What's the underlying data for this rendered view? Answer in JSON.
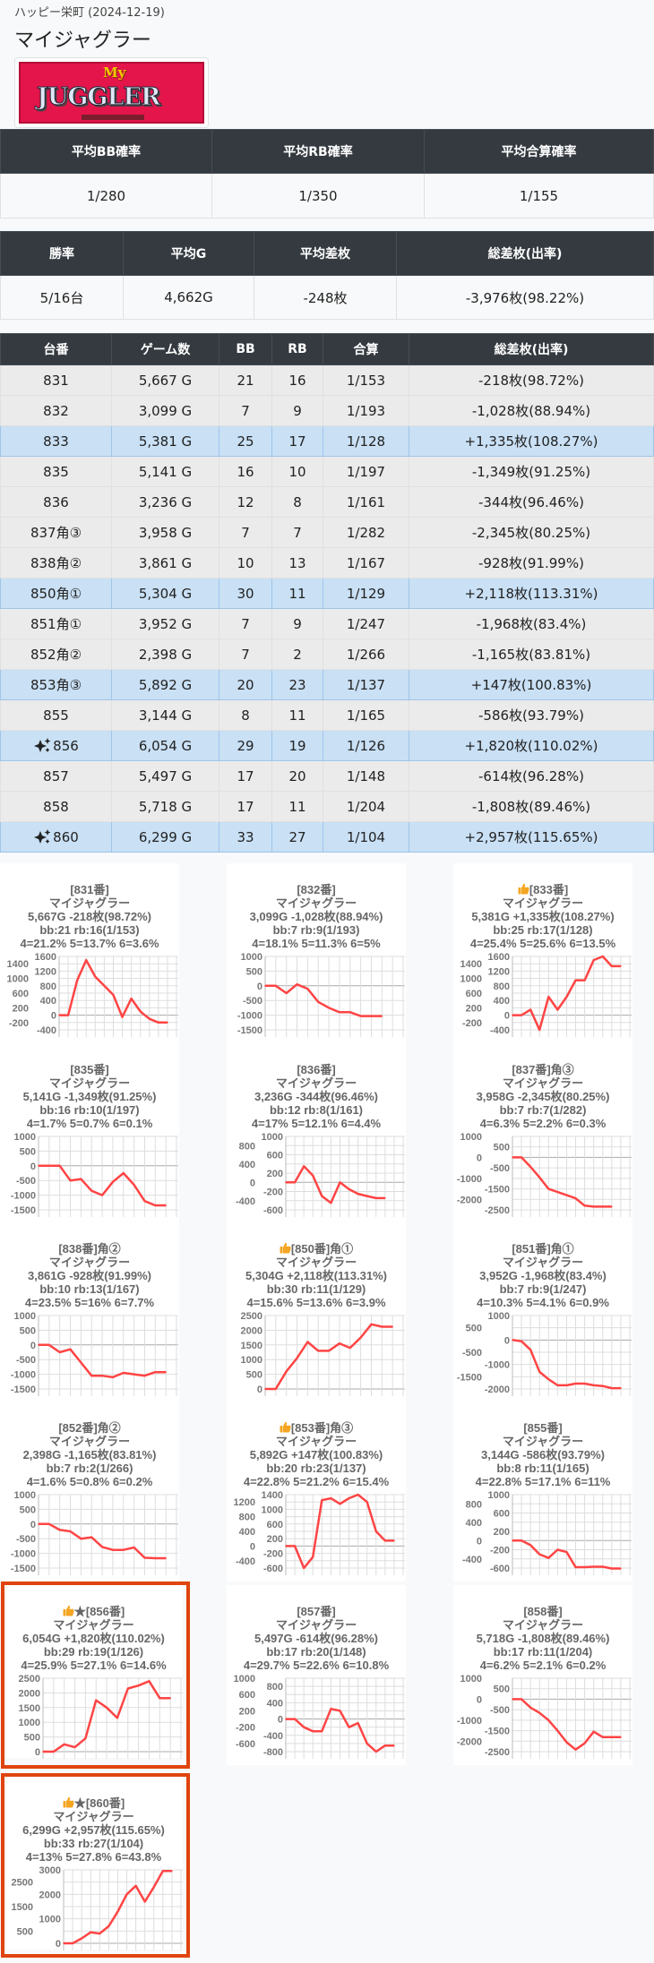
{
  "header": {
    "store_date": "ハッピー栄町 (2024-12-19)",
    "machine": "マイジャグラー",
    "logo_text": "My JUGGLER"
  },
  "summary1": {
    "headers": [
      "平均BB確率",
      "平均RB確率",
      "平均合算確率"
    ],
    "values": [
      "1/280",
      "1/350",
      "1/155"
    ]
  },
  "summary2": {
    "headers": [
      "勝率",
      "平均G",
      "平均差枚",
      "総差枚(出率)"
    ],
    "values": [
      "5/16台",
      "4,662G",
      "-248枚",
      "-3,976枚(98.22%)"
    ]
  },
  "machines": {
    "headers": [
      "台番",
      "ゲーム数",
      "BB",
      "RB",
      "合算",
      "総差枚(出率)"
    ],
    "rows": [
      {
        "no": "831",
        "games": "5,667 G",
        "bb": "21",
        "rb": "16",
        "total": "1/153",
        "diff": "-218枚(98.72%)",
        "highlight": false,
        "sparkle": false
      },
      {
        "no": "832",
        "games": "3,099 G",
        "bb": "7",
        "rb": "9",
        "total": "1/193",
        "diff": "-1,028枚(88.94%)",
        "highlight": false,
        "sparkle": false
      },
      {
        "no": "833",
        "games": "5,381 G",
        "bb": "25",
        "rb": "17",
        "total": "1/128",
        "diff": "+1,335枚(108.27%)",
        "highlight": true,
        "sparkle": false
      },
      {
        "no": "835",
        "games": "5,141 G",
        "bb": "16",
        "rb": "10",
        "total": "1/197",
        "diff": "-1,349枚(91.25%)",
        "highlight": false,
        "sparkle": false
      },
      {
        "no": "836",
        "games": "3,236 G",
        "bb": "12",
        "rb": "8",
        "total": "1/161",
        "diff": "-344枚(96.46%)",
        "highlight": false,
        "sparkle": false
      },
      {
        "no": "837角③",
        "games": "3,958 G",
        "bb": "7",
        "rb": "7",
        "total": "1/282",
        "diff": "-2,345枚(80.25%)",
        "highlight": false,
        "sparkle": false
      },
      {
        "no": "838角②",
        "games": "3,861 G",
        "bb": "10",
        "rb": "13",
        "total": "1/167",
        "diff": "-928枚(91.99%)",
        "highlight": false,
        "sparkle": false
      },
      {
        "no": "850角①",
        "games": "5,304 G",
        "bb": "30",
        "rb": "11",
        "total": "1/129",
        "diff": "+2,118枚(113.31%)",
        "highlight": true,
        "sparkle": false
      },
      {
        "no": "851角①",
        "games": "3,952 G",
        "bb": "7",
        "rb": "9",
        "total": "1/247",
        "diff": "-1,968枚(83.4%)",
        "highlight": false,
        "sparkle": false
      },
      {
        "no": "852角②",
        "games": "2,398 G",
        "bb": "7",
        "rb": "2",
        "total": "1/266",
        "diff": "-1,165枚(83.81%)",
        "highlight": false,
        "sparkle": false
      },
      {
        "no": "853角③",
        "games": "5,892 G",
        "bb": "20",
        "rb": "23",
        "total": "1/137",
        "diff": "+147枚(100.83%)",
        "highlight": true,
        "sparkle": false
      },
      {
        "no": "855",
        "games": "3,144 G",
        "bb": "8",
        "rb": "11",
        "total": "1/165",
        "diff": "-586枚(93.79%)",
        "highlight": false,
        "sparkle": false
      },
      {
        "no": "856",
        "games": "6,054 G",
        "bb": "29",
        "rb": "19",
        "total": "1/126",
        "diff": "+1,820枚(110.02%)",
        "highlight": true,
        "sparkle": true
      },
      {
        "no": "857",
        "games": "5,497 G",
        "bb": "17",
        "rb": "20",
        "total": "1/148",
        "diff": "-614枚(96.28%)",
        "highlight": false,
        "sparkle": false
      },
      {
        "no": "858",
        "games": "5,718 G",
        "bb": "17",
        "rb": "11",
        "total": "1/204",
        "diff": "-1,808枚(89.46%)",
        "highlight": false,
        "sparkle": false
      },
      {
        "no": "860",
        "games": "6,299 G",
        "bb": "33",
        "rb": "27",
        "total": "1/104",
        "diff": "+2,957枚(115.65%)",
        "highlight": true,
        "sparkle": true
      }
    ]
  },
  "colors": {
    "line": "#ff4444",
    "frame": "#e0440e",
    "thumb": "#f4a623"
  },
  "chart_data": [
    {
      "type": "line",
      "title": "[831番]",
      "thumbs": false,
      "machine": "マイジャグラー",
      "summary": "5,667G -218枚(98.72%)",
      "bbrb": "bb:21 rb:16(1/153)",
      "settings": "4=21.2% 5=13.7% 6=3.6%",
      "ylim": [
        -400,
        1600
      ],
      "ystep": 200,
      "values": [
        0,
        0,
        950,
        1500,
        1050,
        800,
        550,
        -50,
        450,
        100,
        -100,
        -200,
        -200
      ],
      "framed": false
    },
    {
      "type": "line",
      "title": "[832番]",
      "thumbs": false,
      "machine": "マイジャグラー",
      "summary": "3,099G -1,028枚(88.94%)",
      "bbrb": "bb:7 rb:9(1/193)",
      "settings": "4=18.1% 5=11.3% 6=5%",
      "ylim": [
        -1500,
        1000
      ],
      "ystep": 500,
      "values": [
        0,
        0,
        -250,
        50,
        -100,
        -550,
        -750,
        -900,
        -900,
        -1030,
        -1030,
        -1030
      ],
      "framed": false
    },
    {
      "type": "line",
      "title": "[833番]",
      "thumbs": true,
      "machine": "マイジャグラー",
      "summary": "5,381G +1,335枚(108.27%)",
      "bbrb": "bb:25 rb:17(1/128)",
      "settings": "4=25.4% 5=25.6% 6=13.5%",
      "ylim": [
        -400,
        1600
      ],
      "ystep": 200,
      "values": [
        0,
        0,
        150,
        -400,
        500,
        150,
        500,
        950,
        950,
        1500,
        1600,
        1335,
        1335
      ],
      "framed": false
    },
    {
      "type": "line",
      "title": "[835番]",
      "thumbs": false,
      "machine": "マイジャグラー",
      "summary": "5,141G -1,349枚(91.25%)",
      "bbrb": "bb:16 rb:10(1/197)",
      "settings": "4=1.7% 5=0.7% 6=0.1%",
      "ylim": [
        -1500,
        1000
      ],
      "ystep": 500,
      "values": [
        0,
        0,
        0,
        -500,
        -450,
        -850,
        -1000,
        -550,
        -250,
        -650,
        -1200,
        -1349,
        -1349
      ],
      "framed": false
    },
    {
      "type": "line",
      "title": "[836番]",
      "thumbs": false,
      "machine": "マイジャグラー",
      "summary": "3,236G -344枚(96.46%)",
      "bbrb": "bb:12 rb:8(1/161)",
      "settings": "4=17% 5=12.1% 6=4.4%",
      "ylim": [
        -600,
        1000
      ],
      "ystep": 200,
      "values": [
        0,
        0,
        350,
        150,
        -300,
        -450,
        0,
        -150,
        -250,
        -300,
        -344,
        -344
      ],
      "framed": false
    },
    {
      "type": "line",
      "title": "[837番]角③",
      "thumbs": false,
      "machine": "マイジャグラー",
      "summary": "3,958G -2,345枚(80.25%)",
      "bbrb": "bb:7 rb:7(1/282)",
      "settings": "4=6.3% 5=2.2% 6=0.3%",
      "ylim": [
        -2500,
        1000
      ],
      "ystep": 500,
      "values": [
        0,
        0,
        -450,
        -950,
        -1500,
        -1650,
        -1800,
        -1950,
        -2300,
        -2345,
        -2345,
        -2345
      ],
      "framed": false
    },
    {
      "type": "line",
      "title": "[838番]角②",
      "thumbs": false,
      "machine": "マイジャグラー",
      "summary": "3,861G -928枚(91.99%)",
      "bbrb": "bb:10 rb:13(1/167)",
      "settings": "4=23.5% 5=16% 6=7.7%",
      "ylim": [
        -1500,
        1000
      ],
      "ystep": 500,
      "values": [
        0,
        0,
        -250,
        -150,
        -600,
        -1050,
        -1050,
        -1100,
        -950,
        -1000,
        -1050,
        -928,
        -928
      ],
      "framed": false
    },
    {
      "type": "line",
      "title": "[850番]角①",
      "thumbs": true,
      "machine": "マイジャグラー",
      "summary": "5,304G +2,118枚(113.31%)",
      "bbrb": "bb:30 rb:11(1/129)",
      "settings": "4=15.6% 5=13.6% 6=3.9%",
      "ylim": [
        0,
        2500
      ],
      "ystep": 500,
      "values": [
        0,
        0,
        600,
        1050,
        1600,
        1300,
        1300,
        1550,
        1400,
        1750,
        2200,
        2118,
        2118
      ],
      "framed": false
    },
    {
      "type": "line",
      "title": "[851番]角①",
      "thumbs": false,
      "machine": "マイジャグラー",
      "summary": "3,952G -1,968枚(83.4%)",
      "bbrb": "bb:7 rb:9(1/247)",
      "settings": "4=10.3% 5=4.1% 6=0.9%",
      "ylim": [
        -2000,
        1000
      ],
      "ystep": 500,
      "values": [
        0,
        -50,
        -400,
        -1300,
        -1600,
        -1850,
        -1850,
        -1780,
        -1780,
        -1850,
        -1880,
        -1968,
        -1968
      ],
      "framed": false
    },
    {
      "type": "line",
      "title": "[852番]角②",
      "thumbs": false,
      "machine": "マイジャグラー",
      "summary": "2,398G -1,165枚(83.81%)",
      "bbrb": "bb:7 rb:2(1/266)",
      "settings": "4=1.6% 5=0.8% 6=0.2%",
      "ylim": [
        -1500,
        1000
      ],
      "ystep": 500,
      "values": [
        0,
        0,
        -200,
        -250,
        -500,
        -450,
        -780,
        -880,
        -880,
        -800,
        -1150,
        -1165,
        -1165
      ],
      "framed": false
    },
    {
      "type": "line",
      "title": "[853番]角③",
      "thumbs": true,
      "machine": "マイジャグラー",
      "summary": "5,892G +147枚(100.83%)",
      "bbrb": "bb:20 rb:23(1/137)",
      "settings": "4=22.8% 5=21.2% 6=15.4%",
      "ylim": [
        -600,
        1400
      ],
      "ystep": 200,
      "values": [
        0,
        0,
        -600,
        -300,
        1250,
        1300,
        1150,
        1300,
        1400,
        1200,
        400,
        147,
        147
      ],
      "framed": false
    },
    {
      "type": "line",
      "title": "[855番]",
      "thumbs": false,
      "machine": "マイジャグラー",
      "summary": "3,144G -586枚(93.79%)",
      "bbrb": "bb:8 rb:11(1/165)",
      "settings": "4=22.8% 5=17.1% 6=11%",
      "ylim": [
        -600,
        1000
      ],
      "ystep": 200,
      "values": [
        0,
        0,
        -100,
        -300,
        -380,
        -200,
        -250,
        -580,
        -580,
        -570,
        -570,
        -610,
        -610
      ],
      "framed": false
    },
    {
      "type": "line",
      "title": "★[856番]",
      "thumbs": true,
      "machine": "マイジャグラー",
      "summary": "6,054G +1,820枚(110.02%)",
      "bbrb": "bb:29 rb:19(1/126)",
      "settings": "4=25.9% 5=27.1% 6=14.6%",
      "ylim": [
        0,
        2500
      ],
      "ystep": 500,
      "values": [
        0,
        0,
        250,
        150,
        450,
        1750,
        1500,
        1150,
        2150,
        2250,
        2400,
        1820,
        1820
      ],
      "framed": true
    },
    {
      "type": "line",
      "title": "[857番]",
      "thumbs": false,
      "machine": "マイジャグラー",
      "summary": "5,497G -614枚(96.28%)",
      "bbrb": "bb:17 rb:20(1/148)",
      "settings": "4=29.7% 5=22.6% 6=10.8%",
      "ylim": [
        -800,
        1000
      ],
      "ystep": 200,
      "values": [
        0,
        0,
        -200,
        -300,
        -300,
        250,
        200,
        -200,
        -100,
        -600,
        -800,
        -650,
        -650
      ],
      "framed": false
    },
    {
      "type": "line",
      "title": "[858番]",
      "thumbs": false,
      "machine": "マイジャグラー",
      "summary": "5,718G -1,808枚(89.46%)",
      "bbrb": "bb:17 rb:11(1/204)",
      "settings": "4=6.2% 5=2.1% 6=0.2%",
      "ylim": [
        -2500,
        1000
      ],
      "ystep": 500,
      "values": [
        0,
        0,
        -400,
        -650,
        -1000,
        -1500,
        -2050,
        -2400,
        -2100,
        -1550,
        -1808,
        -1808,
        -1808
      ],
      "framed": false
    },
    {
      "type": "line",
      "title": "★[860番]",
      "thumbs": true,
      "machine": "マイジャグラー",
      "summary": "6,299G +2,957枚(115.65%)",
      "bbrb": "bb:33 rb:27(1/104)",
      "settings": "4=13% 5=27.8% 6=43.8%",
      "ylim": [
        0,
        3000
      ],
      "ystep": 500,
      "values": [
        0,
        0,
        200,
        450,
        400,
        700,
        1300,
        2000,
        2350,
        1700,
        2300,
        2957,
        2957
      ],
      "framed": true
    }
  ]
}
